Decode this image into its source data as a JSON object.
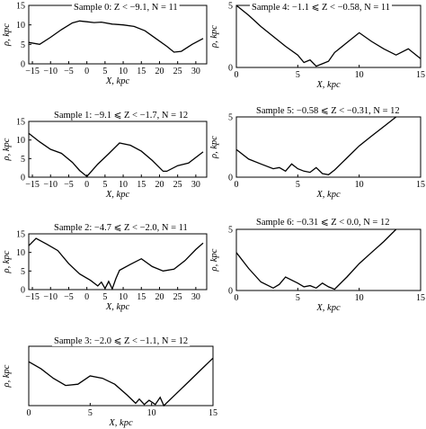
{
  "chart_data": [
    {
      "type": "line",
      "title": "Sample 0:  Z < −9.1, N = 11",
      "xlabel": "X, kpc",
      "ylabel": "ρ, kpc",
      "xlim": [
        -16,
        33
      ],
      "ylim": [
        0,
        15
      ],
      "xticks": [
        -15,
        -10,
        -5,
        0,
        5,
        10,
        15,
        20,
        25,
        30
      ],
      "yticks": [
        0,
        5,
        10,
        15
      ],
      "x": [
        -16,
        -13,
        -10,
        -7,
        -4,
        -2,
        0,
        2,
        4,
        7,
        10,
        13,
        16,
        19,
        22,
        24,
        26,
        29,
        32
      ],
      "y": [
        5.5,
        5.0,
        6.8,
        8.8,
        10.5,
        11.0,
        10.8,
        10.6,
        10.7,
        10.2,
        10.0,
        9.6,
        8.5,
        6.5,
        4.5,
        3.0,
        3.2,
        5.0,
        6.5
      ]
    },
    {
      "type": "line",
      "title": "Sample 1:  −9.1 ⩽ Z < −1.7, N = 12",
      "xlabel": "X, kpc",
      "ylabel": "ρ, kpc",
      "xlim": [
        -16,
        33
      ],
      "ylim": [
        0,
        15
      ],
      "xticks": [
        -15,
        -10,
        -5,
        0,
        5,
        10,
        15,
        20,
        25,
        30
      ],
      "yticks": [
        0,
        5,
        10,
        15
      ],
      "x": [
        -16,
        -13,
        -10,
        -7,
        -4,
        -2,
        0,
        3,
        6,
        9,
        12,
        15,
        18,
        21,
        22,
        25,
        28,
        32
      ],
      "y": [
        11.8,
        9.5,
        7.5,
        6.4,
        4.0,
        1.8,
        0.2,
        3.5,
        6.3,
        9.2,
        8.6,
        7.0,
        4.5,
        1.6,
        1.6,
        3.1,
        3.8,
        6.8
      ]
    },
    {
      "type": "line",
      "title": "Sample 2:  −4.7 ⩽ Z < −2.0, N = 11",
      "xlabel": "X, kpc",
      "ylabel": "ρ, kpc",
      "xlim": [
        -16,
        33
      ],
      "ylim": [
        0,
        15
      ],
      "xticks": [
        -15,
        -10,
        -5,
        0,
        5,
        10,
        15,
        20,
        25,
        30
      ],
      "yticks": [
        0,
        5,
        10,
        15
      ],
      "x": [
        -16,
        -14,
        -11,
        -8,
        -5,
        -2,
        1,
        3,
        4,
        5,
        6,
        7,
        8,
        9,
        12,
        15,
        18,
        21,
        24,
        27,
        30,
        32
      ],
      "y": [
        11.8,
        13.8,
        12.2,
        10.5,
        7.0,
        4.2,
        2.5,
        1.0,
        2.0,
        0.3,
        2.2,
        0.2,
        3.0,
        5.2,
        6.8,
        8.3,
        6.2,
        5.0,
        5.5,
        7.8,
        10.8,
        12.5
      ]
    },
    {
      "type": "line",
      "title": "Sample 3:  −2.0 ⩽ Z < −1.1, N = 12",
      "xlabel": "X, kpc",
      "ylabel": "ρ, kpc",
      "xlim": [
        0,
        15
      ],
      "ylim": [
        0,
        5
      ],
      "xticks": [
        0,
        5,
        10,
        15
      ],
      "yticks": [],
      "x": [
        0,
        1,
        2,
        3,
        4,
        5,
        6,
        7,
        8,
        8.7,
        9,
        9.4,
        9.8,
        10.3,
        10.7,
        11,
        12,
        13,
        14,
        15
      ],
      "y": [
        3.7,
        3.1,
        2.3,
        1.7,
        1.8,
        2.5,
        2.3,
        1.8,
        0.9,
        0.2,
        0.55,
        0.1,
        0.45,
        0.1,
        0.7,
        0.0,
        1.0,
        2.0,
        3.0,
        4.0
      ]
    },
    {
      "type": "line",
      "title": "Sample 4:  −1.1 ⩽ Z < −0.58, N = 11",
      "xlabel": "X, kpc",
      "ylabel": "ρ, kpc",
      "xlim": [
        0,
        15
      ],
      "ylim": [
        0,
        5
      ],
      "xticks": [
        0,
        5,
        10,
        15
      ],
      "yticks": [
        0,
        5
      ],
      "x": [
        0,
        1,
        2,
        3,
        4,
        5,
        5.5,
        6,
        6.5,
        7,
        7.5,
        8,
        9,
        10,
        11,
        12,
        13,
        14,
        15
      ],
      "y": [
        5.0,
        4.2,
        3.3,
        2.5,
        1.7,
        1.0,
        0.4,
        0.6,
        0.1,
        0.3,
        0.5,
        1.2,
        2.0,
        2.8,
        2.1,
        1.5,
        1.0,
        1.5,
        0.7
      ]
    },
    {
      "type": "line",
      "title": "Sample 5:  −0.58 ⩽ Z < −0.31, N = 12",
      "xlabel": "X, kpc",
      "ylabel": "ρ, kpc",
      "xlim": [
        0,
        15
      ],
      "ylim": [
        0,
        5
      ],
      "xticks": [
        0,
        5,
        10,
        15
      ],
      "yticks": [
        0,
        5
      ],
      "x": [
        0,
        1,
        2,
        3,
        3.5,
        4,
        4.5,
        5,
        5.5,
        6,
        6.5,
        7,
        7.5,
        8,
        9,
        10,
        11,
        12,
        13
      ],
      "y": [
        2.3,
        1.5,
        1.1,
        0.7,
        0.8,
        0.5,
        1.1,
        0.7,
        0.5,
        0.4,
        0.8,
        0.3,
        0.2,
        0.6,
        1.6,
        2.6,
        3.4,
        4.2,
        5.0
      ]
    },
    {
      "type": "line",
      "title": "Sample 6:  −0.31 ⩽ Z < 0.0, N = 12",
      "xlabel": "X, kpc",
      "ylabel": "ρ, kpc",
      "xlim": [
        0,
        15
      ],
      "ylim": [
        0,
        5
      ],
      "xticks": [
        0,
        5,
        10,
        15
      ],
      "yticks": [
        0,
        5
      ],
      "x": [
        0,
        1,
        2,
        3,
        3.5,
        4,
        5,
        5.5,
        6,
        6.5,
        7,
        7.5,
        8,
        9,
        10,
        11,
        12,
        13
      ],
      "y": [
        3.1,
        1.8,
        0.7,
        0.2,
        0.5,
        1.1,
        0.6,
        0.3,
        0.4,
        0.2,
        0.6,
        0.3,
        0.1,
        1.1,
        2.2,
        3.1,
        4.0,
        5.0
      ]
    }
  ]
}
